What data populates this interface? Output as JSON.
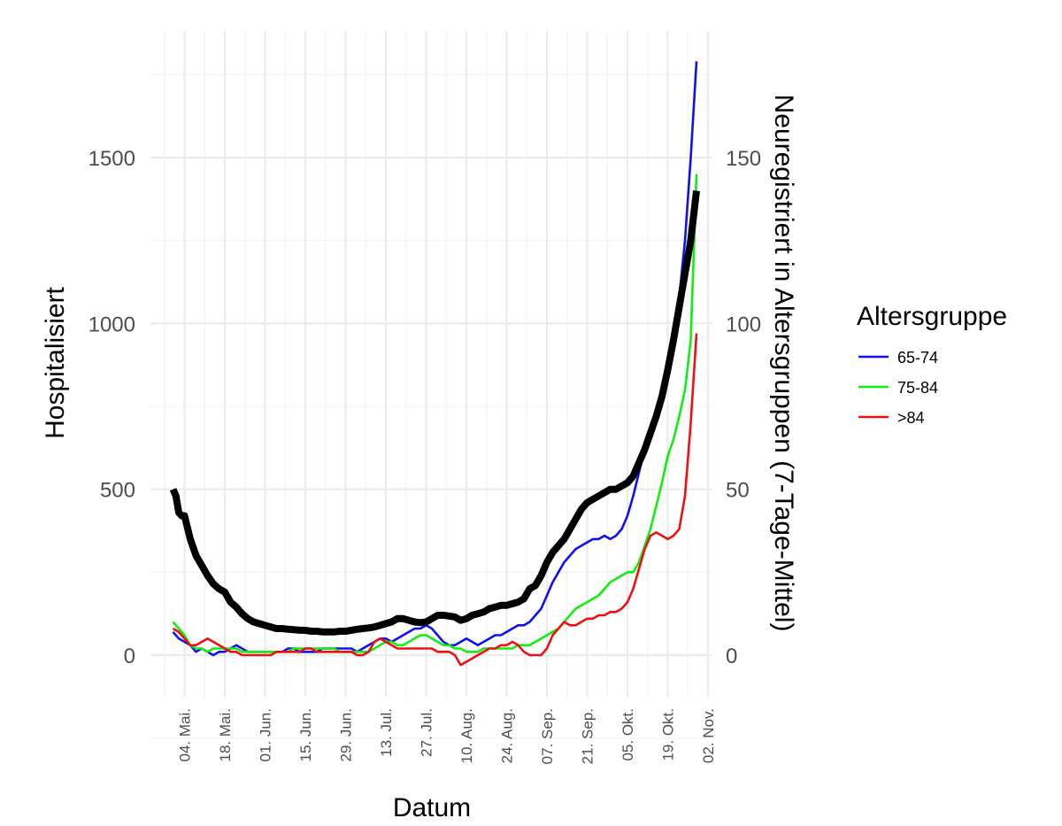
{
  "chart_data": {
    "type": "line",
    "xlabel": "Datum",
    "ylabel_left": "Hospitalisiert",
    "ylabel_right": "Neuregistriert in Altersgruppen (7-Tage-Mittel)",
    "xlim": [
      -3,
      181
    ],
    "ylim_left": [
      -130,
      1880
    ],
    "ylim_right": [
      -13,
      188
    ],
    "y_ticks_left": [
      0,
      500,
      1000,
      1500
    ],
    "y_tick_labels_left": [
      "0",
      "500",
      "1000",
      "1500"
    ],
    "y_ticks_right": [
      0,
      50,
      100,
      150
    ],
    "y_tick_labels_right": [
      "0",
      "50",
      "100",
      "150"
    ],
    "x_ticks": [
      0,
      14,
      28,
      42,
      56,
      70,
      84,
      98,
      112,
      126,
      140,
      154,
      168,
      182
    ],
    "x_tick_labels": [
      "04. Mai.",
      "18. Mai.",
      "01. Jun.",
      "15. Jun.",
      "29. Jun.",
      "13. Jul.",
      "27. Jul.",
      "10. Aug.",
      "24. Aug.",
      "07. Sep.",
      "21. Sep.",
      "05. Okt.",
      "19. Okt.",
      "02. Nov."
    ],
    "x_unit": "days since 04. Mai.",
    "legend": {
      "title": "Altersgruppe",
      "entries": [
        "65-74",
        "75-84",
        ">84"
      ],
      "position": "right"
    },
    "series": [
      {
        "name": "Hospitalisiert",
        "axis": "left",
        "color": "#000000",
        "x": [
          -4,
          -3,
          -2,
          -1,
          0,
          2,
          4,
          6,
          8,
          10,
          12,
          14,
          16,
          18,
          20,
          22,
          24,
          26,
          28,
          30,
          32,
          34,
          36,
          38,
          40,
          42,
          44,
          46,
          48,
          50,
          52,
          54,
          56,
          58,
          60,
          62,
          64,
          66,
          68,
          70,
          72,
          74,
          76,
          78,
          80,
          82,
          84,
          86,
          88,
          90,
          92,
          94,
          96,
          98,
          100,
          102,
          104,
          106,
          108,
          110,
          112,
          114,
          116,
          118,
          120,
          122,
          124,
          126,
          128,
          130,
          132,
          134,
          136,
          138,
          140,
          142,
          144,
          146,
          148,
          150,
          152,
          154,
          156,
          158,
          160,
          162,
          164,
          166,
          168,
          170,
          172,
          174,
          176,
          178
        ],
        "values": [
          500,
          480,
          430,
          420,
          420,
          350,
          300,
          270,
          240,
          215,
          200,
          190,
          160,
          145,
          125,
          110,
          100,
          95,
          90,
          85,
          80,
          80,
          78,
          77,
          75,
          75,
          72,
          72,
          70,
          70,
          70,
          72,
          72,
          75,
          78,
          80,
          82,
          85,
          90,
          95,
          100,
          110,
          110,
          105,
          100,
          98,
          100,
          110,
          120,
          120,
          118,
          115,
          105,
          110,
          120,
          125,
          130,
          140,
          145,
          150,
          150,
          155,
          160,
          170,
          200,
          210,
          240,
          280,
          310,
          330,
          350,
          380,
          410,
          440,
          460,
          470,
          480,
          490,
          500,
          500,
          510,
          520,
          540,
          580,
          620,
          670,
          720,
          780,
          860,
          950,
          1050,
          1150,
          1250,
          1400
        ]
      },
      {
        "name": "65-74",
        "axis": "right",
        "color": "#1010ee",
        "x": [
          -4,
          -2,
          0,
          2,
          4,
          6,
          8,
          10,
          12,
          14,
          16,
          18,
          20,
          22,
          24,
          26,
          28,
          30,
          32,
          34,
          36,
          38,
          40,
          42,
          44,
          46,
          48,
          50,
          52,
          54,
          56,
          58,
          60,
          62,
          64,
          66,
          68,
          70,
          72,
          74,
          76,
          78,
          80,
          82,
          84,
          86,
          88,
          90,
          92,
          94,
          96,
          98,
          100,
          102,
          104,
          106,
          108,
          110,
          112,
          114,
          116,
          118,
          120,
          122,
          124,
          126,
          128,
          130,
          132,
          134,
          136,
          138,
          140,
          142,
          144,
          146,
          148,
          150,
          152,
          154,
          156,
          158,
          160,
          162,
          164,
          166,
          168,
          170,
          172,
          174,
          176,
          178
        ],
        "values": [
          7,
          5,
          4,
          3,
          1,
          2,
          1,
          0,
          1,
          1,
          2,
          3,
          2,
          1,
          1,
          1,
          1,
          1,
          1,
          1,
          2,
          2,
          1,
          1,
          1,
          1,
          2,
          2,
          2,
          2,
          2,
          2,
          1,
          2,
          3,
          4,
          5,
          5,
          4,
          5,
          6,
          7,
          8,
          8,
          9,
          8,
          6,
          4,
          3,
          3,
          4,
          5,
          4,
          3,
          4,
          5,
          6,
          6,
          7,
          8,
          9,
          9,
          10,
          12,
          14,
          18,
          22,
          25,
          28,
          30,
          32,
          33,
          34,
          35,
          35,
          36,
          35,
          36,
          38,
          42,
          48,
          55,
          62,
          68,
          72,
          78,
          85,
          95,
          108,
          125,
          150,
          179
        ]
      },
      {
        "name": "75-84",
        "axis": "right",
        "color": "#11ee11",
        "x": [
          -4,
          -2,
          0,
          2,
          4,
          6,
          8,
          10,
          12,
          14,
          16,
          18,
          20,
          22,
          24,
          26,
          28,
          30,
          32,
          34,
          36,
          38,
          40,
          42,
          44,
          46,
          48,
          50,
          52,
          54,
          56,
          58,
          60,
          62,
          64,
          66,
          68,
          70,
          72,
          74,
          76,
          78,
          80,
          82,
          84,
          86,
          88,
          90,
          92,
          94,
          96,
          98,
          100,
          102,
          104,
          106,
          108,
          110,
          112,
          114,
          116,
          118,
          120,
          122,
          124,
          126,
          128,
          130,
          132,
          134,
          136,
          138,
          140,
          142,
          144,
          146,
          148,
          150,
          152,
          154,
          156,
          158,
          160,
          162,
          164,
          166,
          168,
          170,
          172,
          174,
          176,
          178
        ],
        "values": [
          10,
          8,
          6,
          3,
          2,
          2,
          1,
          2,
          2,
          2,
          2,
          2,
          1,
          1,
          1,
          1,
          1,
          1,
          1,
          1,
          1,
          2,
          2,
          2,
          2,
          2,
          2,
          2,
          2,
          1,
          1,
          1,
          1,
          1,
          1,
          2,
          3,
          4,
          4,
          3,
          3,
          4,
          5,
          6,
          6,
          5,
          4,
          3,
          3,
          2,
          2,
          1,
          1,
          1,
          2,
          2,
          2,
          2,
          2,
          2,
          3,
          3,
          3,
          4,
          5,
          6,
          7,
          8,
          10,
          12,
          14,
          15,
          16,
          17,
          18,
          20,
          22,
          23,
          24,
          25,
          25,
          28,
          33,
          38,
          45,
          52,
          60,
          65,
          72,
          80,
          95,
          145
        ]
      },
      {
        "name": ">84",
        "axis": "right",
        "color": "#ee1010",
        "x": [
          -4,
          -2,
          0,
          2,
          4,
          6,
          8,
          10,
          12,
          14,
          16,
          18,
          20,
          22,
          24,
          26,
          28,
          30,
          32,
          34,
          36,
          38,
          40,
          42,
          44,
          46,
          48,
          50,
          52,
          54,
          56,
          58,
          60,
          62,
          64,
          66,
          68,
          70,
          72,
          74,
          76,
          78,
          80,
          82,
          84,
          86,
          88,
          90,
          92,
          94,
          96,
          98,
          100,
          102,
          104,
          106,
          108,
          110,
          112,
          114,
          116,
          118,
          120,
          122,
          124,
          126,
          128,
          130,
          132,
          134,
          136,
          138,
          140,
          142,
          144,
          146,
          148,
          150,
          152,
          154,
          156,
          158,
          160,
          162,
          164,
          166,
          168,
          170,
          172,
          174,
          176,
          178
        ],
        "values": [
          8,
          7,
          5,
          3,
          3,
          4,
          5,
          4,
          3,
          2,
          1,
          1,
          0,
          0,
          0,
          0,
          0,
          0,
          1,
          1,
          1,
          1,
          1,
          2,
          2,
          1,
          1,
          1,
          1,
          1,
          1,
          1,
          0,
          0,
          1,
          4,
          5,
          4,
          3,
          2,
          2,
          2,
          2,
          2,
          2,
          2,
          1,
          1,
          1,
          0,
          -3,
          -2,
          -1,
          0,
          1,
          2,
          2,
          3,
          3,
          4,
          3,
          1,
          0,
          0,
          0,
          2,
          6,
          8,
          10,
          9,
          9,
          10,
          11,
          11,
          12,
          12,
          13,
          13,
          14,
          16,
          20,
          26,
          32,
          36,
          37,
          36,
          35,
          36,
          38,
          48,
          70,
          97
        ]
      }
    ]
  }
}
